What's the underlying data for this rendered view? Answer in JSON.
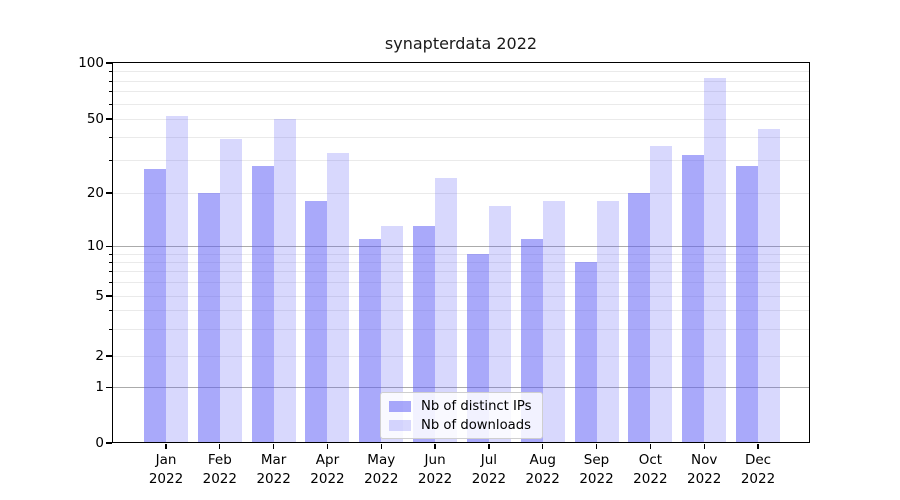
{
  "title": "synapterdata 2022",
  "colors": {
    "ips_bar_hex": "#a9a9fa",
    "downloads_bar_hex": "#d9d9fa",
    "ips_bar_fill": "rgba(90,90,245,0.52)",
    "downloads_bar_fill": "rgba(90,90,245,0.235)",
    "grid_minor": "#eaeaea",
    "grid_major": "#ababab",
    "spine": "#000000",
    "background": "#ffffff"
  },
  "legend": {
    "items": [
      {
        "label": "Nb of distinct IPs",
        "color_key": "ips_bar_fill"
      },
      {
        "label": "Nb of downloads",
        "color_key": "downloads_bar_fill"
      }
    ]
  },
  "yaxis": {
    "tick_labels": [
      "100",
      "50",
      "20",
      "10",
      "5",
      "2",
      "1",
      "0"
    ],
    "tick_values": [
      100,
      50,
      20,
      10,
      5,
      2,
      1,
      0
    ],
    "minor_grid_values": [
      2,
      3,
      4,
      5,
      6,
      7,
      8,
      9,
      20,
      30,
      40,
      50,
      60,
      70,
      80,
      90
    ],
    "major_grid_values": [
      1,
      10
    ]
  },
  "xaxis": {
    "months": [
      "Jan",
      "Feb",
      "Mar",
      "Apr",
      "May",
      "Jun",
      "Jul",
      "Aug",
      "Sep",
      "Oct",
      "Nov",
      "Dec"
    ],
    "year": "2022"
  },
  "chart_data": {
    "type": "bar",
    "title": "synapterdata 2022",
    "categories": [
      "Jan 2022",
      "Feb 2022",
      "Mar 2022",
      "Apr 2022",
      "May 2022",
      "Jun 2022",
      "Jul 2022",
      "Aug 2022",
      "Sep 2022",
      "Oct 2022",
      "Nov 2022",
      "Dec 2022"
    ],
    "series": [
      {
        "name": "Nb of distinct IPs",
        "values": [
          27,
          20,
          28,
          18,
          11,
          13,
          9,
          11,
          8,
          20,
          32,
          28
        ]
      },
      {
        "name": "Nb of downloads",
        "values": [
          52,
          39,
          50,
          33,
          13,
          24,
          17,
          18,
          18,
          36,
          83,
          44
        ]
      }
    ],
    "ylabel": "",
    "xlabel": "",
    "yscale": "log-like with zero (symlog)",
    "yticks": [
      0,
      1,
      2,
      5,
      10,
      20,
      50,
      100
    ],
    "ylim": [
      0,
      100
    ],
    "grid": true,
    "legend_position": "lower center"
  }
}
